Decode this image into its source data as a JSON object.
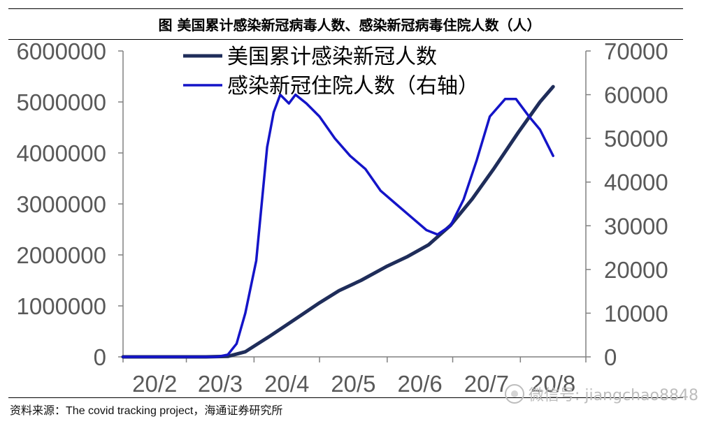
{
  "title": "图  美国累计感染新冠病毒人数、感染新冠病毒住院人数（人）",
  "source": {
    "prefix": "资料来源：",
    "text": "The covid tracking project",
    "suffix": "，海通证券研究所"
  },
  "watermark": "微信号: jiangchao8848",
  "chart_data": {
    "type": "line",
    "x_axis": {
      "tick_labels": [
        "20/2",
        "20/3",
        "20/4",
        "20/5",
        "20/6",
        "20/7",
        "20/8"
      ],
      "range": [
        "2020-02-01",
        "2020-08-31"
      ]
    },
    "y_left": {
      "range": [
        0,
        6000000
      ],
      "ticks": [
        0,
        1000000,
        2000000,
        3000000,
        4000000,
        5000000,
        6000000
      ]
    },
    "y_right": {
      "range": [
        0,
        70000
      ],
      "ticks": [
        0,
        10000,
        20000,
        30000,
        40000,
        50000,
        60000,
        70000
      ]
    },
    "legend_placement": "top",
    "series": [
      {
        "name": "美国累计感染新冠人数",
        "axis": "left",
        "color": "#1f2d5a",
        "points": [
          [
            "2020-02-01",
            0
          ],
          [
            "2020-03-10",
            0
          ],
          [
            "2020-03-20",
            10000
          ],
          [
            "2020-03-28",
            100000
          ],
          [
            "2020-04-01",
            210000
          ],
          [
            "2020-04-08",
            400000
          ],
          [
            "2020-04-15",
            600000
          ],
          [
            "2020-04-22",
            800000
          ],
          [
            "2020-05-01",
            1060000
          ],
          [
            "2020-05-10",
            1300000
          ],
          [
            "2020-05-20",
            1500000
          ],
          [
            "2020-06-01",
            1780000
          ],
          [
            "2020-06-10",
            1960000
          ],
          [
            "2020-06-20",
            2200000
          ],
          [
            "2020-06-30",
            2580000
          ],
          [
            "2020-07-10",
            3100000
          ],
          [
            "2020-07-20",
            3700000
          ],
          [
            "2020-07-31",
            4400000
          ],
          [
            "2020-08-10",
            5000000
          ],
          [
            "2020-08-16",
            5300000
          ]
        ]
      },
      {
        "name": "感染新冠住院人数（右轴）",
        "axis": "right",
        "color": "#1414c8",
        "points": [
          [
            "2020-02-01",
            0
          ],
          [
            "2020-03-15",
            0
          ],
          [
            "2020-03-20",
            500
          ],
          [
            "2020-03-24",
            3000
          ],
          [
            "2020-03-28",
            10000
          ],
          [
            "2020-04-02",
            22000
          ],
          [
            "2020-04-07",
            48000
          ],
          [
            "2020-04-10",
            56000
          ],
          [
            "2020-04-13",
            60000
          ],
          [
            "2020-04-17",
            58000
          ],
          [
            "2020-04-20",
            60000
          ],
          [
            "2020-04-25",
            58000
          ],
          [
            "2020-05-01",
            55000
          ],
          [
            "2020-05-08",
            50000
          ],
          [
            "2020-05-15",
            46000
          ],
          [
            "2020-05-22",
            43000
          ],
          [
            "2020-05-29",
            38000
          ],
          [
            "2020-06-05",
            35000
          ],
          [
            "2020-06-12",
            32000
          ],
          [
            "2020-06-19",
            29000
          ],
          [
            "2020-06-24",
            28000
          ],
          [
            "2020-06-30",
            30000
          ],
          [
            "2020-07-06",
            36000
          ],
          [
            "2020-07-12",
            45000
          ],
          [
            "2020-07-18",
            55000
          ],
          [
            "2020-07-25",
            59000
          ],
          [
            "2020-07-30",
            59000
          ],
          [
            "2020-08-05",
            55000
          ],
          [
            "2020-08-10",
            52000
          ],
          [
            "2020-08-16",
            46000
          ]
        ]
      }
    ]
  }
}
